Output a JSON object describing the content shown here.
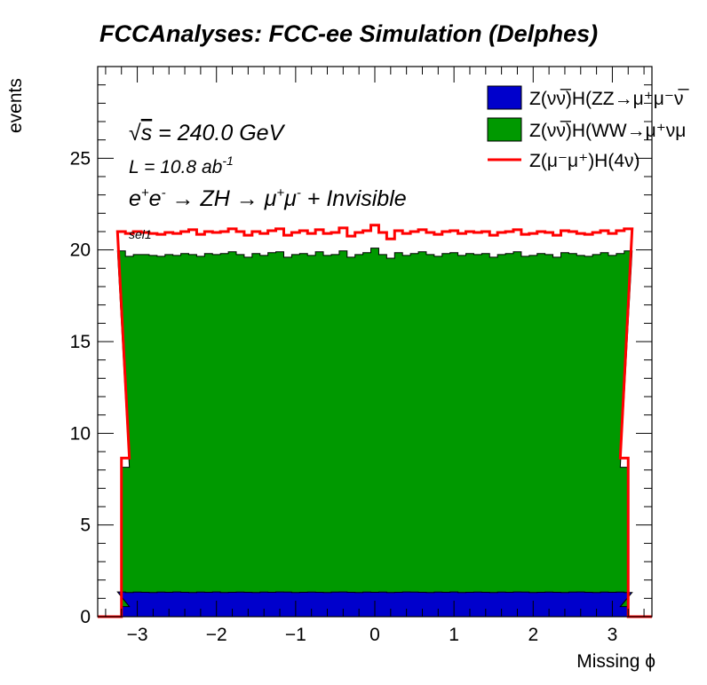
{
  "chart_data": {
    "type": "histogram",
    "title": "FCCAnalyses: FCC-ee Simulation (Delphes)",
    "xlabel": "Missing ϕ",
    "ylabel": "events",
    "xlim": [
      -3.5,
      3.5
    ],
    "ylim": [
      0,
      30
    ],
    "x_ticks": [
      -3,
      -2,
      -1,
      0,
      1,
      2,
      3
    ],
    "x_tick_labels": [
      "−3",
      "−2",
      "−1",
      "0",
      "1",
      "2",
      "3"
    ],
    "y_ticks": [
      0,
      5,
      10,
      15,
      20,
      25
    ],
    "y_tick_labels": [
      "0",
      "5",
      "10",
      "15",
      "20",
      "25"
    ],
    "bins": {
      "min": -3.25,
      "max": 3.25,
      "count": 65
    },
    "edge_bins": {
      "width": 0.1,
      "low_center": -3.15,
      "high_center": 3.15
    },
    "grid": false,
    "legend_position": "top-right",
    "annotations": {
      "sqrt_s": {
        "root": "√",
        "var": "s",
        "text": " = 240.0 GeV"
      },
      "lumi": {
        "text": "L = 10.8 ab",
        "sup": "-1"
      },
      "process": {
        "p1": "e",
        "p1_sup": "+",
        "p2": "e",
        "p2_sup": "-",
        "arrow1": " → ZH → ",
        "m1": "μ",
        "m1_sup": "+",
        "m2": "μ",
        "m2_sup": "-",
        "tail": " + Invisible"
      },
      "selection": "sel1"
    },
    "series": [
      {
        "name": "Z(νν̅)H(ZZ→μ⁺μ⁻ν̅",
        "style": "stacked-fill",
        "color": "#0000cc",
        "edge_low": 0.55,
        "edge_high": 0.55,
        "values": [
          1.35,
          1.32,
          1.34,
          1.33,
          1.32,
          1.34,
          1.33,
          1.35,
          1.33,
          1.32,
          1.34,
          1.33,
          1.35,
          1.32,
          1.33,
          1.34,
          1.33,
          1.32,
          1.34,
          1.33,
          1.35,
          1.34,
          1.32,
          1.33,
          1.34,
          1.33,
          1.32,
          1.34,
          1.35,
          1.33,
          1.32,
          1.34,
          1.33,
          1.34,
          1.32,
          1.33,
          1.35,
          1.34,
          1.33,
          1.32,
          1.34,
          1.33,
          1.35,
          1.32,
          1.33,
          1.34,
          1.33,
          1.32,
          1.34,
          1.33,
          1.35,
          1.34,
          1.32,
          1.33,
          1.34,
          1.33,
          1.32,
          1.34,
          1.35,
          1.33,
          1.32,
          1.34,
          1.33,
          1.34,
          1.32
        ]
      },
      {
        "name": "Z(νν̅)H(WW→μ⁺νμ",
        "style": "stacked-fill",
        "color": "#009900",
        "edge_low": 8.15,
        "edge_high": 8.15,
        "values": [
          19.95,
          19.65,
          19.75,
          19.75,
          19.7,
          19.65,
          19.75,
          19.7,
          19.8,
          19.75,
          19.65,
          19.8,
          19.75,
          19.8,
          19.9,
          19.75,
          19.6,
          19.8,
          19.7,
          19.85,
          19.9,
          19.6,
          19.75,
          19.8,
          19.7,
          19.9,
          19.7,
          19.75,
          19.95,
          19.6,
          19.75,
          19.85,
          20.1,
          19.75,
          19.55,
          19.85,
          19.7,
          19.8,
          19.9,
          19.75,
          19.65,
          19.8,
          19.85,
          19.7,
          19.8,
          19.75,
          19.8,
          19.6,
          19.75,
          19.8,
          19.9,
          19.65,
          19.7,
          19.8,
          19.75,
          19.6,
          19.85,
          19.8,
          19.7,
          19.65,
          19.75,
          19.85,
          19.7,
          19.8,
          19.95
        ]
      },
      {
        "name": "Z(μ⁻μ⁺)H(4ν)",
        "style": "stacked-line",
        "color": "#ff0000",
        "edge_low": 8.65,
        "edge_high": 8.65,
        "values": [
          21.0,
          20.9,
          21.0,
          20.95,
          20.9,
          20.85,
          20.95,
          20.9,
          21.0,
          21.1,
          20.85,
          21.0,
          20.95,
          21.0,
          21.15,
          21.0,
          20.8,
          21.0,
          20.9,
          21.05,
          21.15,
          20.8,
          20.95,
          21.05,
          20.9,
          21.1,
          20.9,
          20.95,
          21.2,
          20.75,
          20.95,
          21.05,
          21.35,
          20.95,
          20.6,
          21.05,
          20.9,
          21.0,
          21.1,
          20.95,
          20.85,
          21.0,
          21.05,
          20.9,
          21.0,
          20.95,
          21.0,
          20.8,
          20.95,
          21.0,
          21.1,
          20.85,
          20.9,
          21.0,
          20.95,
          20.8,
          21.05,
          21.0,
          20.9,
          20.85,
          20.95,
          21.05,
          20.9,
          21.05,
          21.15
        ]
      }
    ]
  }
}
